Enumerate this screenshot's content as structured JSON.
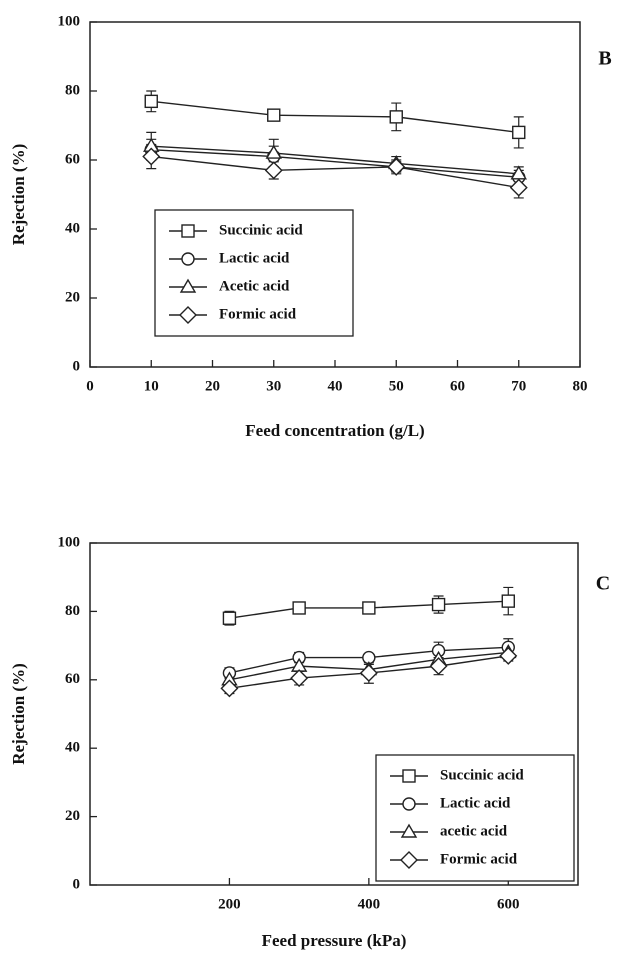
{
  "chart_data": [
    {
      "type": "line",
      "panel": "B",
      "x_label": "Feed concentration (g/L)",
      "y_label": "Rejection (%)",
      "xlim": [
        0,
        80
      ],
      "xticks": [
        0,
        10,
        20,
        30,
        40,
        50,
        60,
        70,
        80
      ],
      "ylim": [
        0,
        100
      ],
      "yticks": [
        0,
        20,
        40,
        60,
        80,
        100
      ],
      "legend_position": "center-left",
      "x": [
        10,
        30,
        50,
        70
      ],
      "series": [
        {
          "name": "Succinic acid",
          "marker": "square",
          "color": "#222222",
          "values": [
            77,
            73,
            72.5,
            68
          ],
          "errors": [
            3,
            1,
            4,
            4.5
          ]
        },
        {
          "name": "Lactic acid",
          "marker": "circle",
          "color": "#222222",
          "values": [
            63,
            61,
            58,
            55
          ],
          "errors": [
            3,
            3,
            2,
            2
          ]
        },
        {
          "name": "Acetic acid",
          "marker": "triangle",
          "color": "#222222",
          "values": [
            64,
            62,
            59,
            56
          ],
          "errors": [
            4,
            4,
            2,
            2
          ]
        },
        {
          "name": "Formic acid",
          "marker": "diamond",
          "color": "#222222",
          "values": [
            61,
            57,
            58,
            52
          ],
          "errors": [
            3.5,
            2.5,
            1.5,
            3
          ]
        }
      ]
    },
    {
      "type": "line",
      "panel": "C",
      "x_label": "Feed pressure (kPa)",
      "y_label": "Rejection (%)",
      "xlim": [
        0,
        700
      ],
      "xticks": [
        200,
        400,
        600
      ],
      "ylim": [
        0,
        100
      ],
      "yticks": [
        0,
        20,
        40,
        60,
        80,
        100
      ],
      "legend_position": "lower-right",
      "x": [
        200,
        300,
        400,
        500,
        600
      ],
      "series": [
        {
          "name": "Succinic acid",
          "marker": "square",
          "color": "#222222",
          "values": [
            78,
            81,
            81,
            82,
            83
          ],
          "errors": [
            2,
            1,
            1.5,
            2.5,
            4
          ]
        },
        {
          "name": "Lactic acid",
          "marker": "circle",
          "color": "#222222",
          "values": [
            62,
            66.5,
            66.5,
            68.5,
            69.5
          ],
          "errors": [
            1.5,
            1.5,
            1,
            2.5,
            2.5
          ]
        },
        {
          "name": "acetic acid",
          "marker": "triangle",
          "color": "#222222",
          "values": [
            60,
            64,
            63,
            66,
            68
          ],
          "errors": [
            1.5,
            1.5,
            1.5,
            2,
            2
          ]
        },
        {
          "name": "Formic acid",
          "marker": "diamond",
          "color": "#222222",
          "values": [
            57.5,
            60.5,
            62,
            64,
            67
          ],
          "errors": [
            1.5,
            2,
            3,
            2.5,
            1.5
          ]
        }
      ]
    }
  ]
}
